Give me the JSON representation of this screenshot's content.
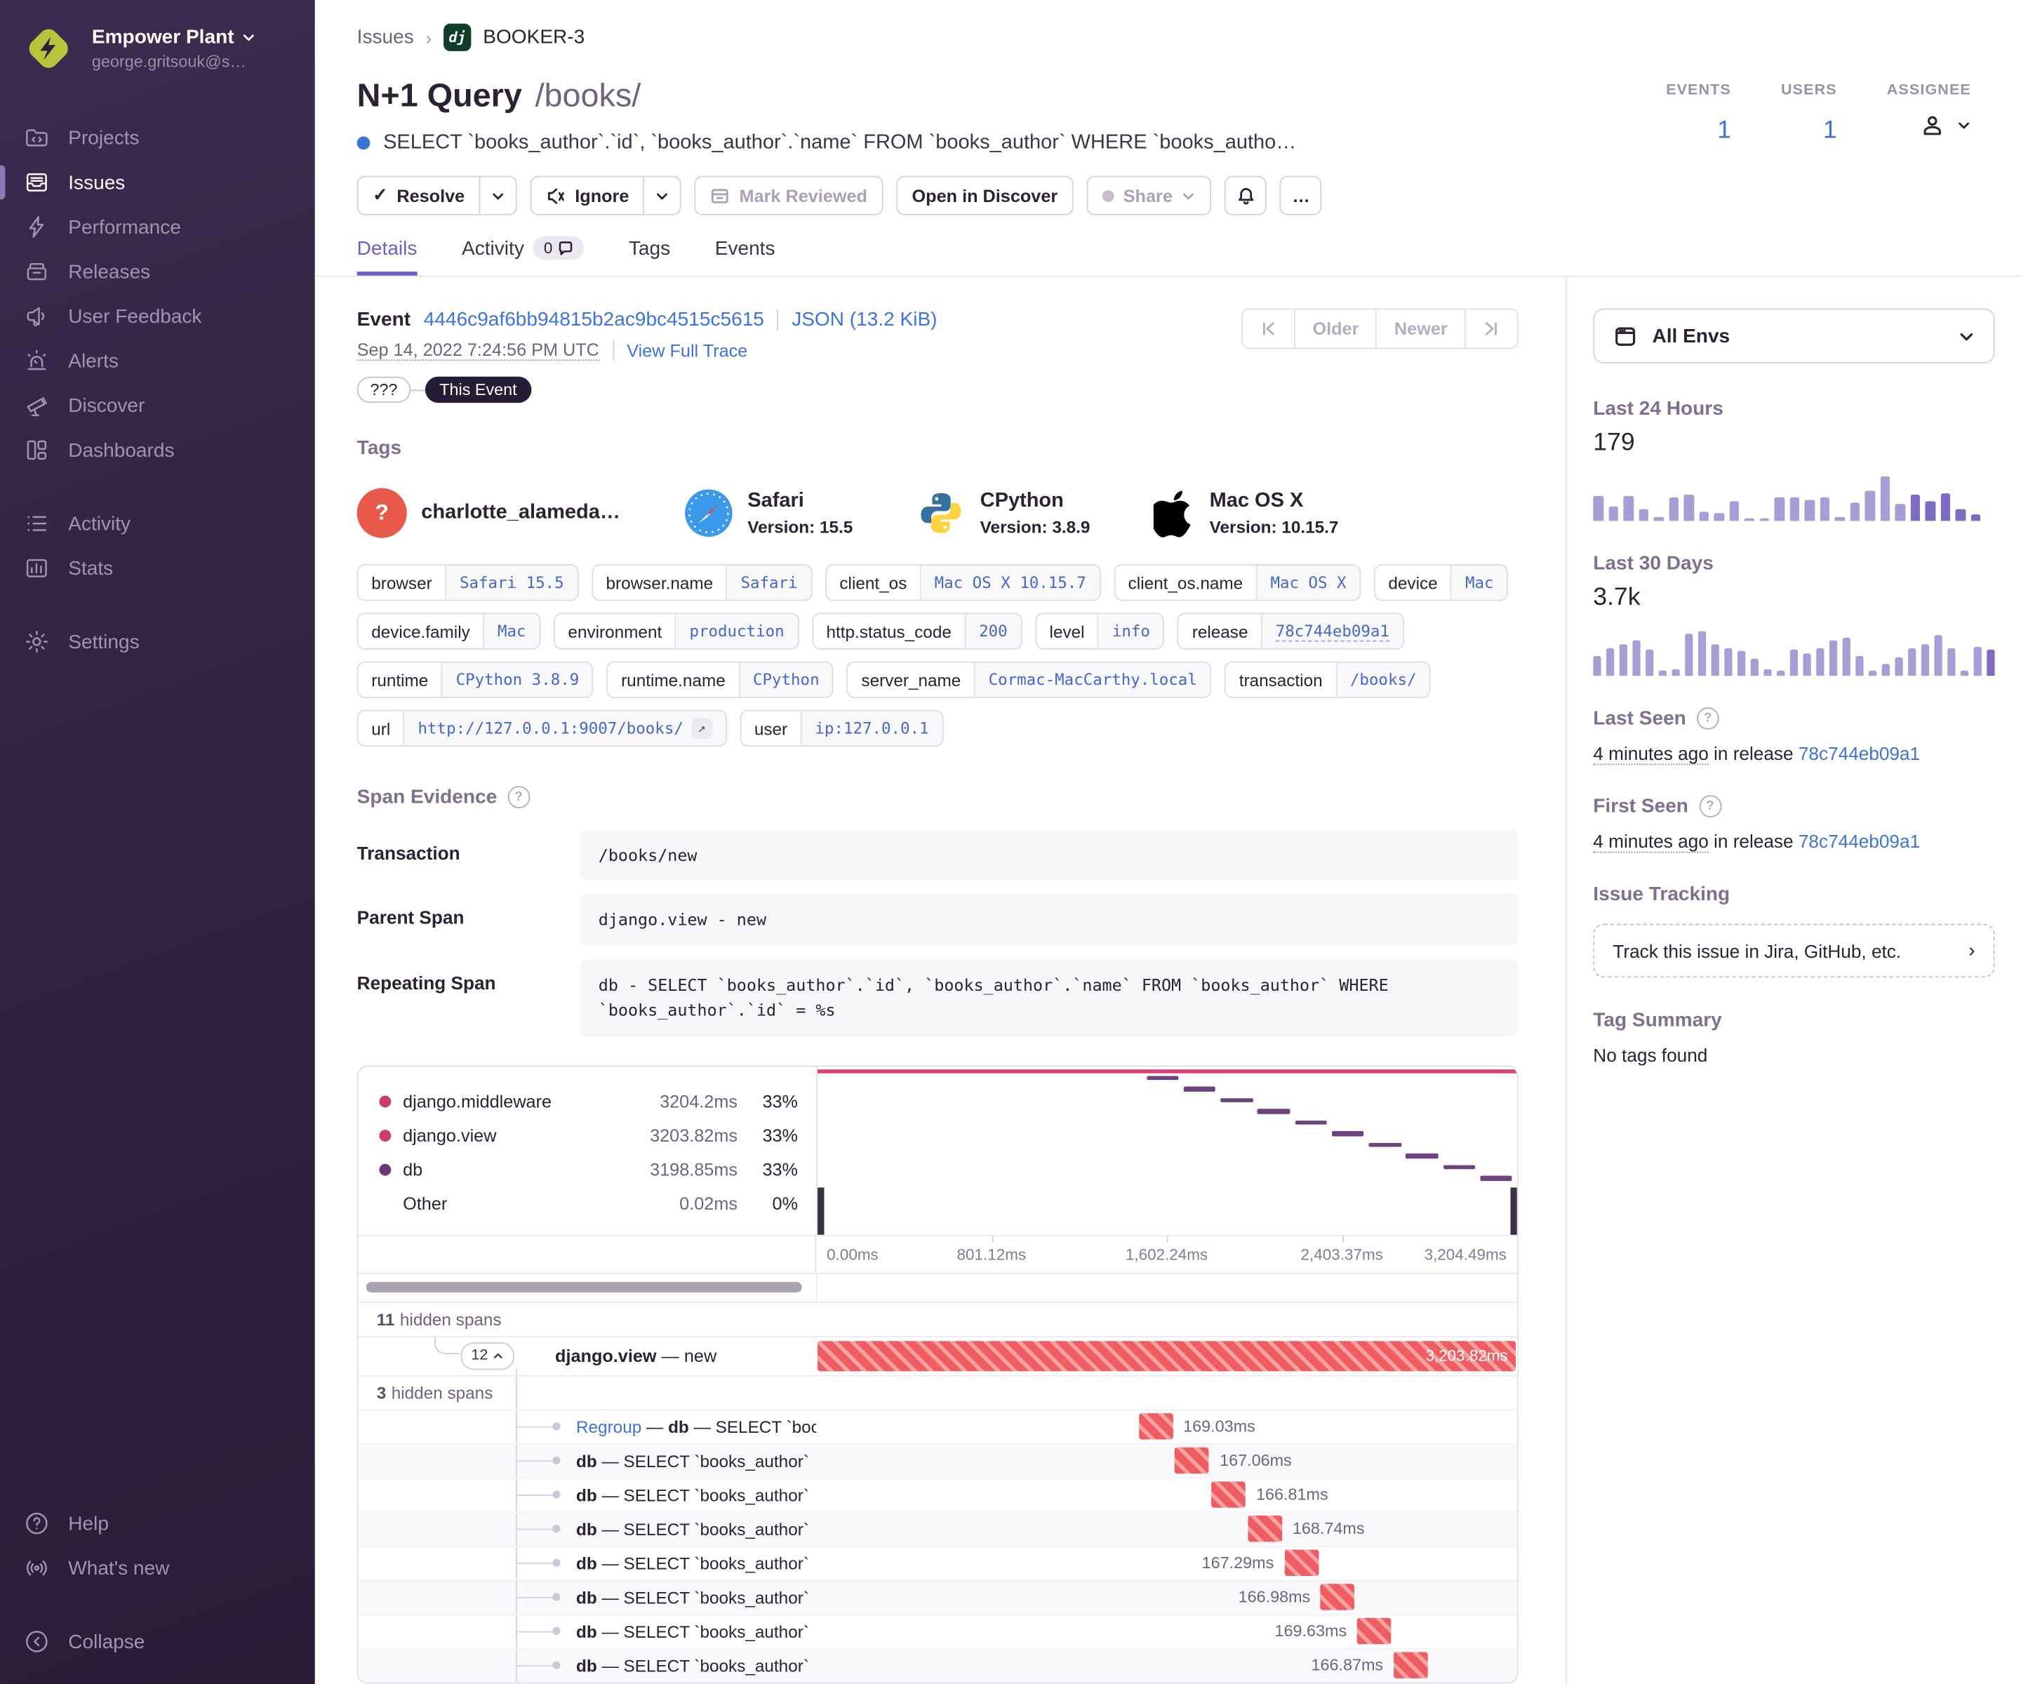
{
  "sidebar": {
    "org": {
      "name": "Empower Plant",
      "email": "george.gritsouk@s…"
    },
    "nav": [
      {
        "id": "projects",
        "label": "Projects",
        "icon": "projects",
        "active": false,
        "group": 0
      },
      {
        "id": "issues",
        "label": "Issues",
        "icon": "issues",
        "active": true,
        "group": 0
      },
      {
        "id": "performance",
        "label": "Performance",
        "icon": "performance",
        "active": false,
        "group": 0
      },
      {
        "id": "releases",
        "label": "Releases",
        "icon": "releases",
        "active": false,
        "group": 0
      },
      {
        "id": "user-feedback",
        "label": "User Feedback",
        "icon": "feedback",
        "active": false,
        "group": 0
      },
      {
        "id": "alerts",
        "label": "Alerts",
        "icon": "alerts",
        "active": false,
        "group": 0
      },
      {
        "id": "discover",
        "label": "Discover",
        "icon": "discover",
        "active": false,
        "group": 0
      },
      {
        "id": "dashboards",
        "label": "Dashboards",
        "icon": "dashboards",
        "active": false,
        "group": 0
      },
      {
        "id": "activity",
        "label": "Activity",
        "icon": "activity",
        "active": false,
        "group": 1
      },
      {
        "id": "stats",
        "label": "Stats",
        "icon": "stats",
        "active": false,
        "group": 1
      },
      {
        "id": "settings",
        "label": "Settings",
        "icon": "settings",
        "active": false,
        "group": 2
      }
    ],
    "footer": [
      {
        "id": "help",
        "label": "Help",
        "icon": "help"
      },
      {
        "id": "whats-new",
        "label": "What's new",
        "icon": "whatsnew"
      }
    ],
    "collapse_label": "Collapse"
  },
  "breadcrumb": {
    "root": "Issues",
    "badge": "dj",
    "project": "BOOKER-3"
  },
  "header": {
    "title": "N+1 Query",
    "path": "/books/",
    "culprit": "SELECT `books_author`.`id`, `books_author`.`name` FROM `books_author` WHERE `books_autho…",
    "stats": {
      "events": {
        "label": "EVENTS",
        "value": "1"
      },
      "users": {
        "label": "USERS",
        "value": "1"
      },
      "assignee": {
        "label": "ASSIGNEE"
      }
    },
    "actions": {
      "resolve": "Resolve",
      "ignore": "Ignore",
      "mark_reviewed": "Mark Reviewed",
      "open_in_discover": "Open in Discover",
      "share": "Share",
      "more": "…"
    }
  },
  "tabs": [
    {
      "label": "Details",
      "active": true
    },
    {
      "label": "Activity",
      "badge": "0"
    },
    {
      "label": "Tags"
    },
    {
      "label": "Events"
    }
  ],
  "event": {
    "label": "Event",
    "id": "4446c9af6bb94815b2ac9bc4515c5615",
    "json_label": "JSON (13.2 KiB)",
    "timestamp": "Sep 14, 2022 7:24:56 PM UTC",
    "view_full_trace": "View Full Trace",
    "pill_unknown": "???",
    "pill_this": "This Event",
    "pager": {
      "older": "Older",
      "newer": "Newer"
    }
  },
  "tags_section": {
    "title": "Tags",
    "featured": [
      {
        "icon": "avatar",
        "name": "charlotte_alameda…",
        "version": ""
      },
      {
        "icon": "safari",
        "name": "Safari",
        "version": "Version: 15.5"
      },
      {
        "icon": "python",
        "name": "CPython",
        "version": "Version: 3.8.9"
      },
      {
        "icon": "apple",
        "name": "Mac OS X",
        "version": "Version: 10.15.7"
      }
    ],
    "pills": [
      {
        "key": "browser",
        "value": "Safari 15.5"
      },
      {
        "key": "browser.name",
        "value": "Safari"
      },
      {
        "key": "client_os",
        "value": "Mac OS X 10.15.7"
      },
      {
        "key": "client_os.name",
        "value": "Mac OS X"
      },
      {
        "key": "device",
        "value": "Mac"
      },
      {
        "key": "device.family",
        "value": "Mac"
      },
      {
        "key": "environment",
        "value": "production"
      },
      {
        "key": "http.status_code",
        "value": "200"
      },
      {
        "key": "level",
        "value": "info"
      },
      {
        "key": "release",
        "value": "78c744eb09a1",
        "underline": true
      },
      {
        "key": "runtime",
        "value": "CPython 3.8.9"
      },
      {
        "key": "runtime.name",
        "value": "CPython"
      },
      {
        "key": "server_name",
        "value": "Cormac-MacCarthy.local"
      },
      {
        "key": "transaction",
        "value": "/books/"
      },
      {
        "key": "url",
        "value": "http://127.0.0.1:9007/books/",
        "external": true
      },
      {
        "key": "user",
        "value": "ip:127.0.0.1"
      }
    ]
  },
  "span_evidence": {
    "title": "Span Evidence",
    "rows": [
      {
        "label": "Transaction",
        "value": "/books/new"
      },
      {
        "label": "Parent Span",
        "value": "django.view - new"
      },
      {
        "label": "Repeating Span",
        "value": "db - SELECT `books_author`.`id`, `books_author`.`name` FROM `books_author` WHERE `books_author`.`id` = %s"
      }
    ]
  },
  "waterfall": {
    "legend": [
      {
        "name": "django.middleware",
        "value": "3204.2ms",
        "pct": "33%",
        "color": "#cb3d6f"
      },
      {
        "name": "django.view",
        "value": "3203.82ms",
        "pct": "33%",
        "color": "#cb3d6f"
      },
      {
        "name": "db",
        "value": "3198.85ms",
        "pct": "33%",
        "color": "#6a3a76"
      },
      {
        "name": "Other",
        "value": "0.02ms",
        "pct": "0%",
        "color": ""
      }
    ],
    "axis": [
      "0.00ms",
      "801.12ms",
      "1,602.24ms",
      "2,403.37ms",
      "3,204.49ms"
    ],
    "hidden_above": {
      "count": "11",
      "label": "hidden spans"
    },
    "group": {
      "count": "12",
      "name": "django.view",
      "sep": "—",
      "desc": "new",
      "duration": "3,203.82ms"
    },
    "hidden_inner": {
      "count": "3",
      "label": "hidden spans"
    },
    "sep": "—",
    "rows": [
      {
        "link": "Regroup",
        "op": "db",
        "desc": "SELECT `boo",
        "duration": "169.03ms",
        "pos": 46,
        "side": "right"
      },
      {
        "op": "db",
        "desc": "SELECT `books_author`",
        "duration": "167.06ms",
        "pos": 51.2,
        "side": "right"
      },
      {
        "op": "db",
        "desc": "SELECT `books_author`",
        "duration": "166.81ms",
        "pos": 56.4,
        "side": "right"
      },
      {
        "op": "db",
        "desc": "SELECT `books_author`",
        "duration": "168.74ms",
        "pos": 61.6,
        "side": "right"
      },
      {
        "op": "db",
        "desc": "SELECT `books_author`",
        "duration": "167.29ms",
        "pos": 66.8,
        "side": "left"
      },
      {
        "op": "db",
        "desc": "SELECT `books_author`",
        "duration": "166.98ms",
        "pos": 72,
        "side": "left"
      },
      {
        "op": "db",
        "desc": "SELECT `books_author`",
        "duration": "169.63ms",
        "pos": 77.2,
        "side": "left"
      },
      {
        "op": "db",
        "desc": "SELECT `books_author`",
        "duration": "166.87ms",
        "pos": 82.4,
        "side": "left"
      }
    ],
    "stair": {
      "count": 10,
      "start_pct": 47,
      "step_pct": 5.3,
      "width_pct": 4.6
    }
  },
  "rail": {
    "env_label": "All Envs",
    "last24": {
      "title": "Last 24 Hours",
      "value": "179",
      "bars": [
        52,
        30,
        52,
        25,
        8,
        50,
        55,
        20,
        16,
        42,
        6,
        6,
        50,
        50,
        45,
        50,
        8,
        40,
        65,
        95,
        36,
        56,
        42,
        58,
        25,
        14
      ],
      "dark_last": 5
    },
    "last30": {
      "title": "Last 30 Days",
      "value": "3.7k",
      "bars": [
        45,
        62,
        72,
        78,
        58,
        12,
        16,
        95,
        100,
        72,
        62,
        55,
        38,
        16,
        12,
        60,
        50,
        62,
        80,
        85,
        45,
        12,
        26,
        42,
        62,
        70,
        90,
        62,
        12,
        65,
        60
      ],
      "dark_last": 1
    },
    "last_seen": {
      "title": "Last Seen",
      "ago": "4 minutes ago",
      "mid": "in release",
      "release": "78c744eb09a1"
    },
    "first_seen": {
      "title": "First Seen",
      "ago": "4 minutes ago",
      "mid": "in release",
      "release": "78c744eb09a1"
    },
    "issue_tracking": {
      "title": "Issue Tracking",
      "button": "Track this issue in Jira, GitHub, etc."
    },
    "tag_summary": {
      "title": "Tag Summary",
      "empty": "No tags found"
    }
  },
  "colors": {
    "accent_purple": "#6c5fc7",
    "link_blue": "#3d74db",
    "mono_blue": "#4468cc",
    "pink_series": "#d6467b",
    "plum_series": "#6c4380",
    "red_hatch": "#ef5d60",
    "bar_light": "#a89ed6",
    "bar_dark": "#7e6bc4",
    "sidebar_bg": "#332242",
    "avatar_orange": "#e8594a",
    "django_green": "#113d2a"
  }
}
